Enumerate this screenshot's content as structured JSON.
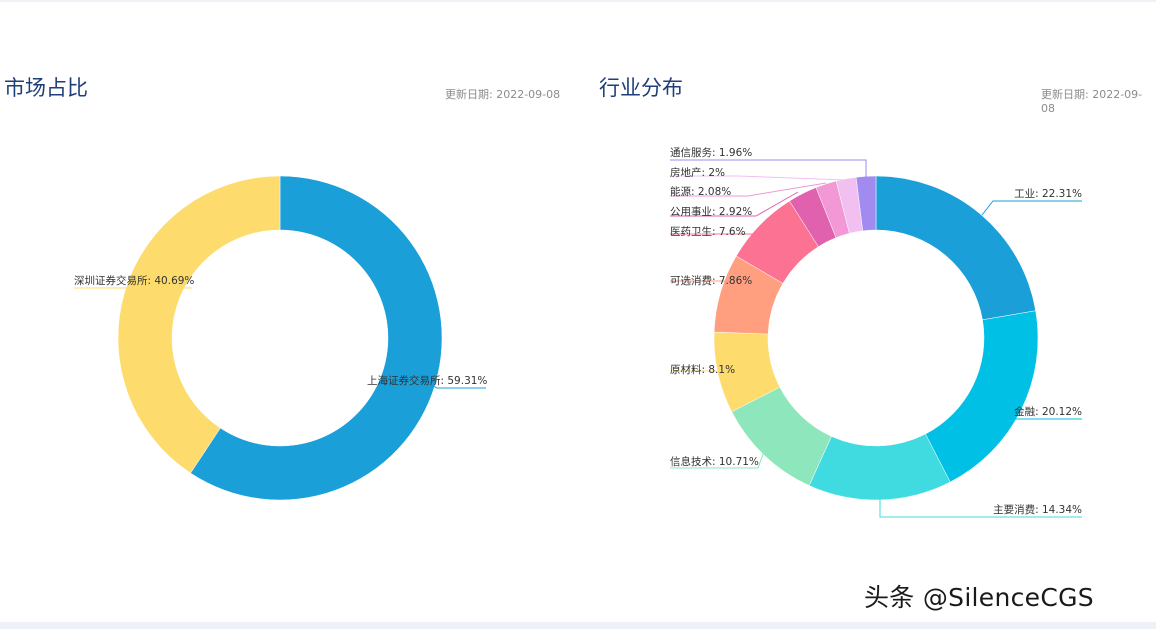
{
  "panels": [
    {
      "title": "市场占比",
      "update_label": "更新日期:",
      "update_date": "2022-09-08"
    },
    {
      "title": "行业分布",
      "update_label": "更新日期:",
      "update_date": "2022-09-08"
    }
  ],
  "watermark": "头条 @SilenceCGS",
  "chart_data": [
    {
      "type": "pie",
      "donut": true,
      "title": "市场占比",
      "slices": [
        {
          "label": "上海证券交易所",
          "value": 59.31,
          "display": "59.31%",
          "color": "#1a9fd9"
        },
        {
          "label": "深圳证券交易所",
          "value": 40.69,
          "display": "40.69%",
          "color": "#fddb6d"
        }
      ]
    },
    {
      "type": "pie",
      "donut": true,
      "title": "行业分布",
      "slices": [
        {
          "label": "工业",
          "value": 22.31,
          "display": "22.31%",
          "color": "#1a9fd9"
        },
        {
          "label": "金融",
          "value": 20.12,
          "display": "20.12%",
          "color": "#00c1e5"
        },
        {
          "label": "主要消费",
          "value": 14.34,
          "display": "14.34%",
          "color": "#3fdbe0"
        },
        {
          "label": "信息技术",
          "value": 10.71,
          "display": "10.71%",
          "color": "#8ee6bc"
        },
        {
          "label": "原材料",
          "value": 8.1,
          "display": "8.1%",
          "color": "#fddb6d"
        },
        {
          "label": "可选消费",
          "value": 7.86,
          "display": "7.86%",
          "color": "#ff9f7f"
        },
        {
          "label": "医药卫生",
          "value": 7.6,
          "display": "7.6%",
          "color": "#fb7293"
        },
        {
          "label": "公用事业",
          "value": 2.92,
          "display": "2.92%",
          "color": "#e062ae"
        },
        {
          "label": "能源",
          "value": 2.08,
          "display": "2.08%",
          "color": "#f298d4"
        },
        {
          "label": "房地产",
          "value": 2,
          "display": "2%",
          "color": "#f1c0f0"
        },
        {
          "label": "通信服务",
          "value": 1.96,
          "display": "1.96%",
          "color": "#a28bf0"
        }
      ]
    }
  ]
}
